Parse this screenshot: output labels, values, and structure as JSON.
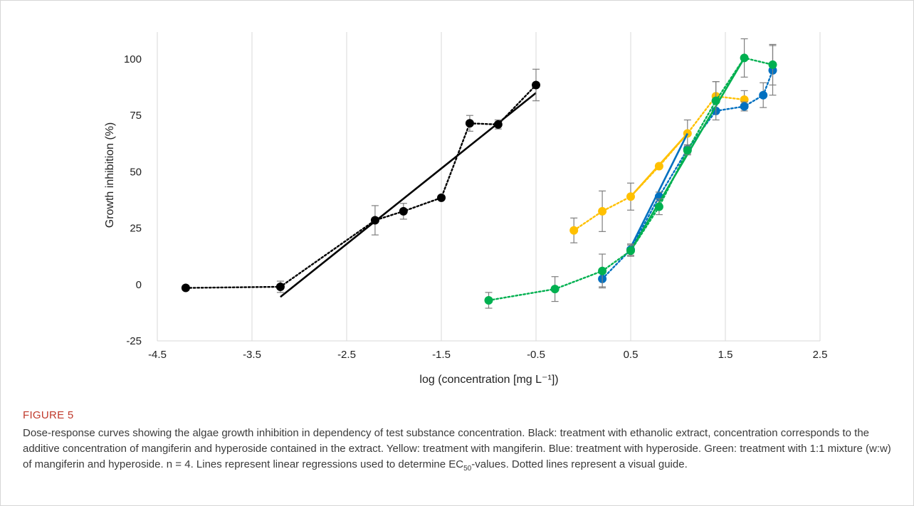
{
  "figure": {
    "label": "FIGURE 5",
    "caption_html": "Dose-response curves showing the algae growth inhibition in dependency of test substance concentration. Black: treatment with ethanolic extract, concentration corresponds to the additive concentration of mangiferin and hyperoside contained in the extract. Yellow: treatment with mangiferin. Blue: treatment with hyperoside. Green: treatment with 1:1 mixture (w:w) of mangiferin and hyperoside. n = 4. Lines represent linear regressions used to determine EC<sub>50</sub>-values. Dotted lines represent a visual guide."
  },
  "chart_data": {
    "type": "line",
    "xlabel": "log (concentration [mg L⁻¹])",
    "ylabel": "Growth inhibition (%)",
    "xlim": [
      -4.5,
      2.5
    ],
    "ylim": [
      -25,
      112
    ],
    "xticks": [
      -4.5,
      -3.5,
      -2.5,
      -1.5,
      -0.5,
      0.5,
      1.5,
      2.5
    ],
    "yticks": [
      -25,
      0,
      25,
      50,
      75,
      100
    ],
    "grid": "vertical",
    "series": [
      {
        "color": "#000000",
        "points": [
          {
            "x": -4.2,
            "y": -1.5,
            "err": 1
          },
          {
            "x": -3.2,
            "y": -1.0,
            "err": 2.5
          },
          {
            "x": -2.2,
            "y": 28.5,
            "err": 6.5
          },
          {
            "x": -1.9,
            "y": 32.5,
            "err": 3.5
          },
          {
            "x": -1.5,
            "y": 38.5,
            "err": 0
          },
          {
            "x": -1.2,
            "y": 71.5,
            "err": 3.5
          },
          {
            "x": -0.9,
            "y": 71.0,
            "err": 2
          },
          {
            "x": -0.5,
            "y": 88.5,
            "err": 7
          }
        ],
        "regression": [
          [
            -3.2,
            -5.5
          ],
          [
            -0.5,
            85.0
          ]
        ]
      },
      {
        "color": "#FFC000",
        "points": [
          {
            "x": -0.1,
            "y": 24.0,
            "err": 5.5
          },
          {
            "x": 0.2,
            "y": 32.5,
            "err": 9
          },
          {
            "x": 0.5,
            "y": 39.0,
            "err": 6
          },
          {
            "x": 0.8,
            "y": 52.5,
            "err": 0
          },
          {
            "x": 1.1,
            "y": 67.0,
            "err": 6
          },
          {
            "x": 1.4,
            "y": 83.5,
            "err": 6.5
          },
          {
            "x": 1.7,
            "y": 82.0,
            "err": 4
          }
        ],
        "regression": [
          [
            0.5,
            39.0
          ],
          [
            1.1,
            67.0
          ]
        ]
      },
      {
        "color": "#0070C0",
        "points": [
          {
            "x": 0.2,
            "y": 2.5,
            "err": 3.5
          },
          {
            "x": 0.5,
            "y": 15.5,
            "err": 2.5
          },
          {
            "x": 0.8,
            "y": 39.0,
            "err": 2
          },
          {
            "x": 1.1,
            "y": 60.0,
            "err": 2
          },
          {
            "x": 1.4,
            "y": 77.0,
            "err": 0
          },
          {
            "x": 1.7,
            "y": 79.0,
            "err": 2
          },
          {
            "x": 1.9,
            "y": 84.0,
            "err": 5.5
          },
          {
            "x": 2.0,
            "y": 95.0,
            "err": 11
          }
        ],
        "regression": [
          [
            0.5,
            16.5
          ],
          [
            1.1,
            67.0
          ]
        ]
      },
      {
        "color": "#00B050",
        "points": [
          {
            "x": -1.0,
            "y": -7.0,
            "err": 3.5
          },
          {
            "x": -0.3,
            "y": -2.0,
            "err": 5.5
          },
          {
            "x": 0.2,
            "y": 6.0,
            "err": 7.5
          },
          {
            "x": 0.5,
            "y": 15.0,
            "err": 2.5
          },
          {
            "x": 0.8,
            "y": 34.5,
            "err": 3.5
          },
          {
            "x": 1.1,
            "y": 59.5,
            "err": 2
          },
          {
            "x": 1.4,
            "y": 81.5,
            "err": 8.5
          },
          {
            "x": 1.7,
            "y": 100.5,
            "err": 8.5
          },
          {
            "x": 2.0,
            "y": 97.5,
            "err": 9
          }
        ],
        "regression": [
          [
            0.5,
            15.0
          ],
          [
            1.7,
            100.5
          ]
        ]
      }
    ]
  }
}
